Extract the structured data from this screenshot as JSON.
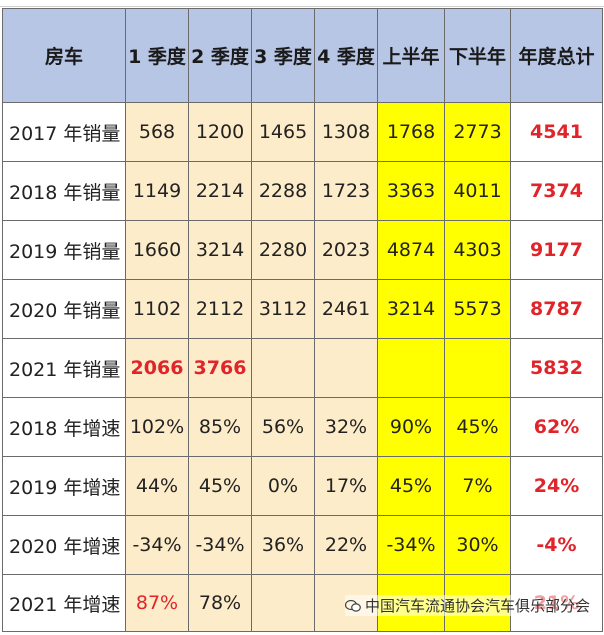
{
  "table": {
    "header": [
      "房车",
      "1 季度",
      "2 季度",
      "3 季度",
      "4 季度",
      "上半年",
      "下半年",
      "年度总计"
    ],
    "rows": [
      [
        "2017 年销量",
        "568",
        "1200",
        "1465",
        "1308",
        "1768",
        "2773",
        "4541"
      ],
      [
        "2018 年销量",
        "1149",
        "2214",
        "2288",
        "1723",
        "3363",
        "4011",
        "7374"
      ],
      [
        "2019 年销量",
        "1660",
        "3214",
        "2280",
        "2023",
        "4874",
        "4303",
        "9177"
      ],
      [
        "2020 年销量",
        "1102",
        "2112",
        "3112",
        "2461",
        "3214",
        "5573",
        "8787"
      ],
      [
        "2021 年销量",
        "2066",
        "3766",
        "",
        "",
        "",
        "",
        "5832"
      ],
      [
        "2018 年增速",
        "102%",
        "85%",
        "56%",
        "32%",
        "90%",
        "45%",
        "62%"
      ],
      [
        "2019 年增速",
        "44%",
        "45%",
        "0%",
        "17%",
        "45%",
        "7%",
        "24%"
      ],
      [
        "2020 年增速",
        "-34%",
        "-34%",
        "36%",
        "22%",
        "-34%",
        "30%",
        "-4%"
      ],
      [
        "2021 年增速",
        "87%",
        "78%",
        "",
        "",
        "",
        "",
        "21%"
      ]
    ]
  },
  "watermark": "中国汽车流通协会汽车俱乐部分会",
  "colors": {
    "header_bg": "#b8c6e6",
    "quarter_bg": "#fdecc9",
    "half_bg": "#ffff00",
    "highlight_red": "#e0242a"
  }
}
